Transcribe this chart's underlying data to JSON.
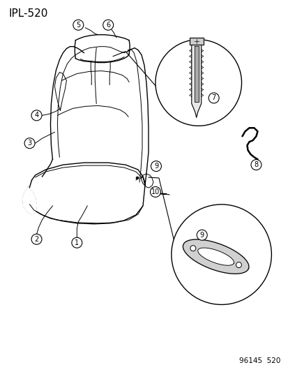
{
  "title": "IPL-520",
  "footer": "96145  520",
  "bg": "#ffffff",
  "lc": "#000000",
  "label_fs": 7.0,
  "footer_fs": 7.5,
  "title_fs": 11
}
